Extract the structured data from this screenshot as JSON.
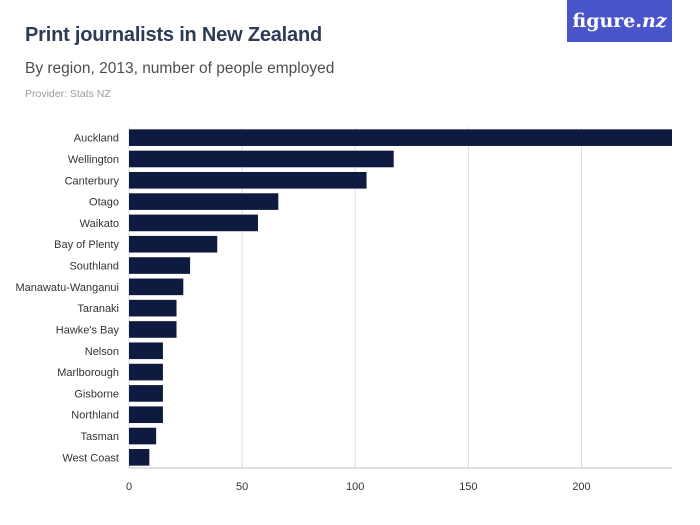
{
  "header": {
    "title": "Print journalists in New Zealand",
    "subtitle": "By region, 2013, number of people employed",
    "provider": "Provider: Stats NZ"
  },
  "logo": {
    "text_main": "figure",
    "text_suffix": ".nz",
    "background": "#4a55c9"
  },
  "colors": {
    "bar": "#0f1a40",
    "grid": "#dddddd"
  },
  "chart_data": {
    "type": "bar",
    "orientation": "horizontal",
    "title": "Print journalists in New Zealand",
    "subtitle": "By region, 2013, number of people employed",
    "categories": [
      "Auckland",
      "Wellington",
      "Canterbury",
      "Otago",
      "Waikato",
      "Bay of Plenty",
      "Southland",
      "Manawatu-Wanganui",
      "Taranaki",
      "Hawke's Bay",
      "Nelson",
      "Marlborough",
      "Gisborne",
      "Northland",
      "Tasman",
      "West Coast"
    ],
    "values": [
      240,
      117,
      105,
      66,
      57,
      39,
      27,
      24,
      21,
      21,
      15,
      15,
      15,
      15,
      12,
      9
    ],
    "xlim": [
      0,
      240
    ],
    "xticks": [
      0,
      50,
      100,
      150,
      200
    ],
    "grid": true,
    "legend": false
  }
}
